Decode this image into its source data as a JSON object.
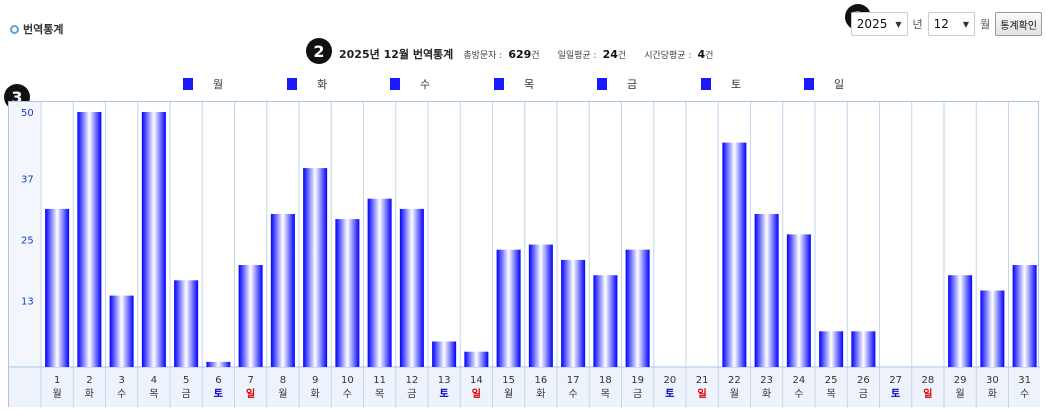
{
  "page": {
    "title": "번역통계"
  },
  "markers": [
    "1",
    "2",
    "3"
  ],
  "controls": {
    "year_value": "2025",
    "year_unit": "년",
    "month_value": "12",
    "month_unit": "월",
    "confirm_label": "통계확인"
  },
  "summary": {
    "headline": "2025년 12월 번역통계",
    "total_label": "총방문자 :",
    "total_value": "629",
    "total_unit": "건",
    "daily_label": "일일평균 :",
    "daily_value": "24",
    "daily_unit": "건",
    "hourly_label": "시간당평균 :",
    "hourly_value": "4",
    "hourly_unit": "건"
  },
  "legend": [
    "월",
    "화",
    "수",
    "목",
    "금",
    "토",
    "일"
  ],
  "colors": {
    "bar_dark": "#0000ff",
    "bar_light": "#ffffff",
    "weekday": "#333333",
    "saturday": "#0000cc",
    "sunday": "#e00000",
    "axis_label": "#1a3cc8",
    "grid": "#c6d6ee",
    "footer_bg": "#eef3fb"
  },
  "chart_data": {
    "type": "bar",
    "yticks": [
      "50",
      "37",
      "25",
      "13"
    ],
    "ylim": [
      0,
      50
    ],
    "categories": [
      "1",
      "2",
      "3",
      "4",
      "5",
      "6",
      "7",
      "8",
      "9",
      "10",
      "11",
      "12",
      "13",
      "14",
      "15",
      "16",
      "17",
      "18",
      "19",
      "20",
      "21",
      "22",
      "23",
      "24",
      "25",
      "26",
      "27",
      "28",
      "29",
      "30",
      "31"
    ],
    "weekdays": [
      "월",
      "화",
      "수",
      "목",
      "금",
      "토",
      "일",
      "월",
      "화",
      "수",
      "목",
      "금",
      "토",
      "일",
      "월",
      "화",
      "수",
      "목",
      "금",
      "토",
      "일",
      "월",
      "화",
      "수",
      "목",
      "금",
      "토",
      "일",
      "월",
      "화",
      "수"
    ],
    "values": [
      31,
      50,
      14,
      50,
      17,
      1,
      20,
      30,
      39,
      29,
      33,
      31,
      5,
      3,
      23,
      24,
      21,
      18,
      23,
      0,
      0,
      44,
      30,
      26,
      7,
      7,
      0,
      0,
      18,
      15,
      20
    ]
  }
}
